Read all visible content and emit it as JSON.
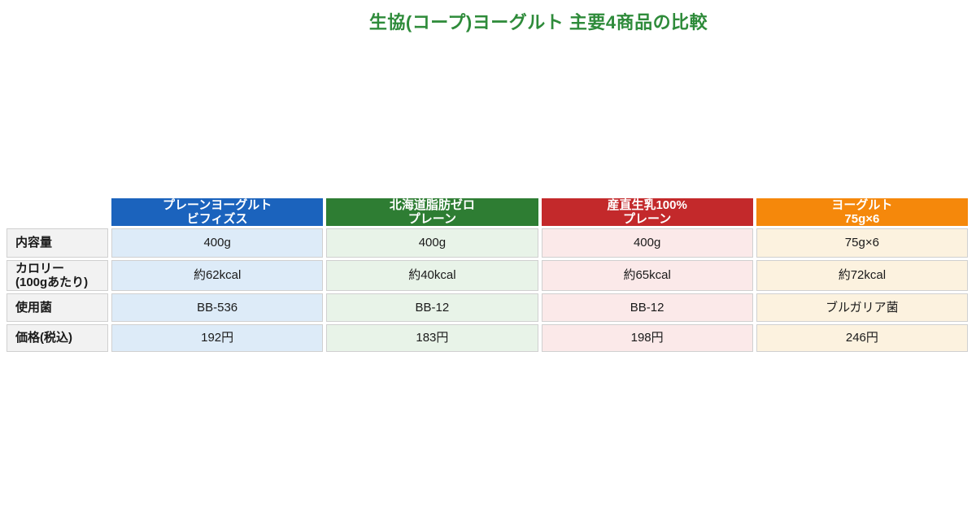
{
  "page": {
    "title": "生協(コープ)ヨーグルト 主要4商品の比較",
    "title_color": "#2e8b3a"
  },
  "table": {
    "products": [
      {
        "name_line1": "プレーンヨーグルト",
        "name_line2": "ビフィズス",
        "header_bg": "#1b63bd",
        "cell_bg": "#ddebf8"
      },
      {
        "name_line1": "北海道脂肪ゼロ",
        "name_line2": "プレーン",
        "header_bg": "#2e7d33",
        "cell_bg": "#e8f3e8"
      },
      {
        "name_line1": "産直生乳100%",
        "name_line2": "プレーン",
        "header_bg": "#c3292b",
        "cell_bg": "#fbe9e9"
      },
      {
        "name_line1": "ヨーグルト",
        "name_line2": "75g×6",
        "header_bg": "#f5880b",
        "cell_bg": "#fcf2df"
      }
    ],
    "rows": [
      {
        "label_line1": "内容量",
        "label_line2": "",
        "values": [
          "400g",
          "400g",
          "400g",
          "75g×6"
        ]
      },
      {
        "label_line1": "カロリー",
        "label_line2": "(100gあたり)",
        "values": [
          "約62kcal",
          "約40kcal",
          "約65kcal",
          "約72kcal"
        ]
      },
      {
        "label_line1": "使用菌",
        "label_line2": "",
        "values": [
          "BB-536",
          "BB-12",
          "BB-12",
          "ブルガリア菌"
        ]
      },
      {
        "label_line1": "価格(税込)",
        "label_line2": "",
        "values": [
          "192円",
          "183円",
          "198円",
          "246円"
        ]
      }
    ]
  },
  "chart_data": {
    "type": "table",
    "title": "生協(コープ)ヨーグルト 主要4商品の比較",
    "columns": [
      "",
      "プレーンヨーグルト ビフィズス",
      "北海道脂肪ゼロ プレーン",
      "産直生乳100% プレーン",
      "ヨーグルト 75g×6"
    ],
    "rows": [
      [
        "内容量",
        "400g",
        "400g",
        "400g",
        "75g×6"
      ],
      [
        "カロリー(100gあたり)",
        "約62kcal",
        "約40kcal",
        "約65kcal",
        "約72kcal"
      ],
      [
        "使用菌",
        "BB-536",
        "BB-12",
        "BB-12",
        "ブルガリア菌"
      ],
      [
        "価格(税込)",
        "192円",
        "183円",
        "198円",
        "246円"
      ]
    ],
    "column_header_colors": [
      "#1b63bd",
      "#2e7d33",
      "#c3292b",
      "#f5880b"
    ],
    "column_cell_colors": [
      "#ddebf8",
      "#e8f3e8",
      "#fbe9e9",
      "#fcf2df"
    ],
    "layout": {
      "grid": true,
      "header_text_color": "#ffffff",
      "label_column_bg": "#f2f2f2"
    }
  }
}
